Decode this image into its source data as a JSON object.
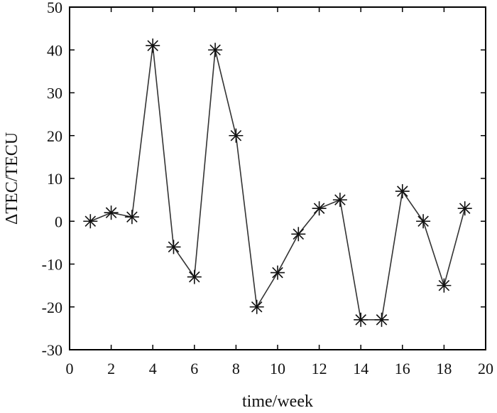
{
  "chart_data": {
    "type": "line",
    "xlabel": "time/week",
    "ylabel": "ΔTEC/TECU",
    "xlim": [
      0,
      20
    ],
    "ylim": [
      -30,
      50
    ],
    "xticks": [
      0,
      2,
      4,
      6,
      8,
      10,
      12,
      14,
      16,
      18,
      20
    ],
    "yticks": [
      -30,
      -20,
      -10,
      0,
      10,
      20,
      30,
      40,
      50
    ],
    "grid": false,
    "marker": "asterisk",
    "line_color": "#333333",
    "series": [
      {
        "x": [
          1,
          2,
          3,
          4,
          5,
          6,
          7,
          8,
          9,
          10,
          11,
          12,
          13,
          14,
          15,
          16,
          17,
          18,
          19
        ],
        "values": [
          0,
          2,
          1,
          41,
          -6,
          -13,
          40,
          20,
          -20,
          -12,
          -3,
          3,
          5,
          -23,
          -23,
          7,
          0,
          -15,
          3
        ]
      }
    ]
  }
}
